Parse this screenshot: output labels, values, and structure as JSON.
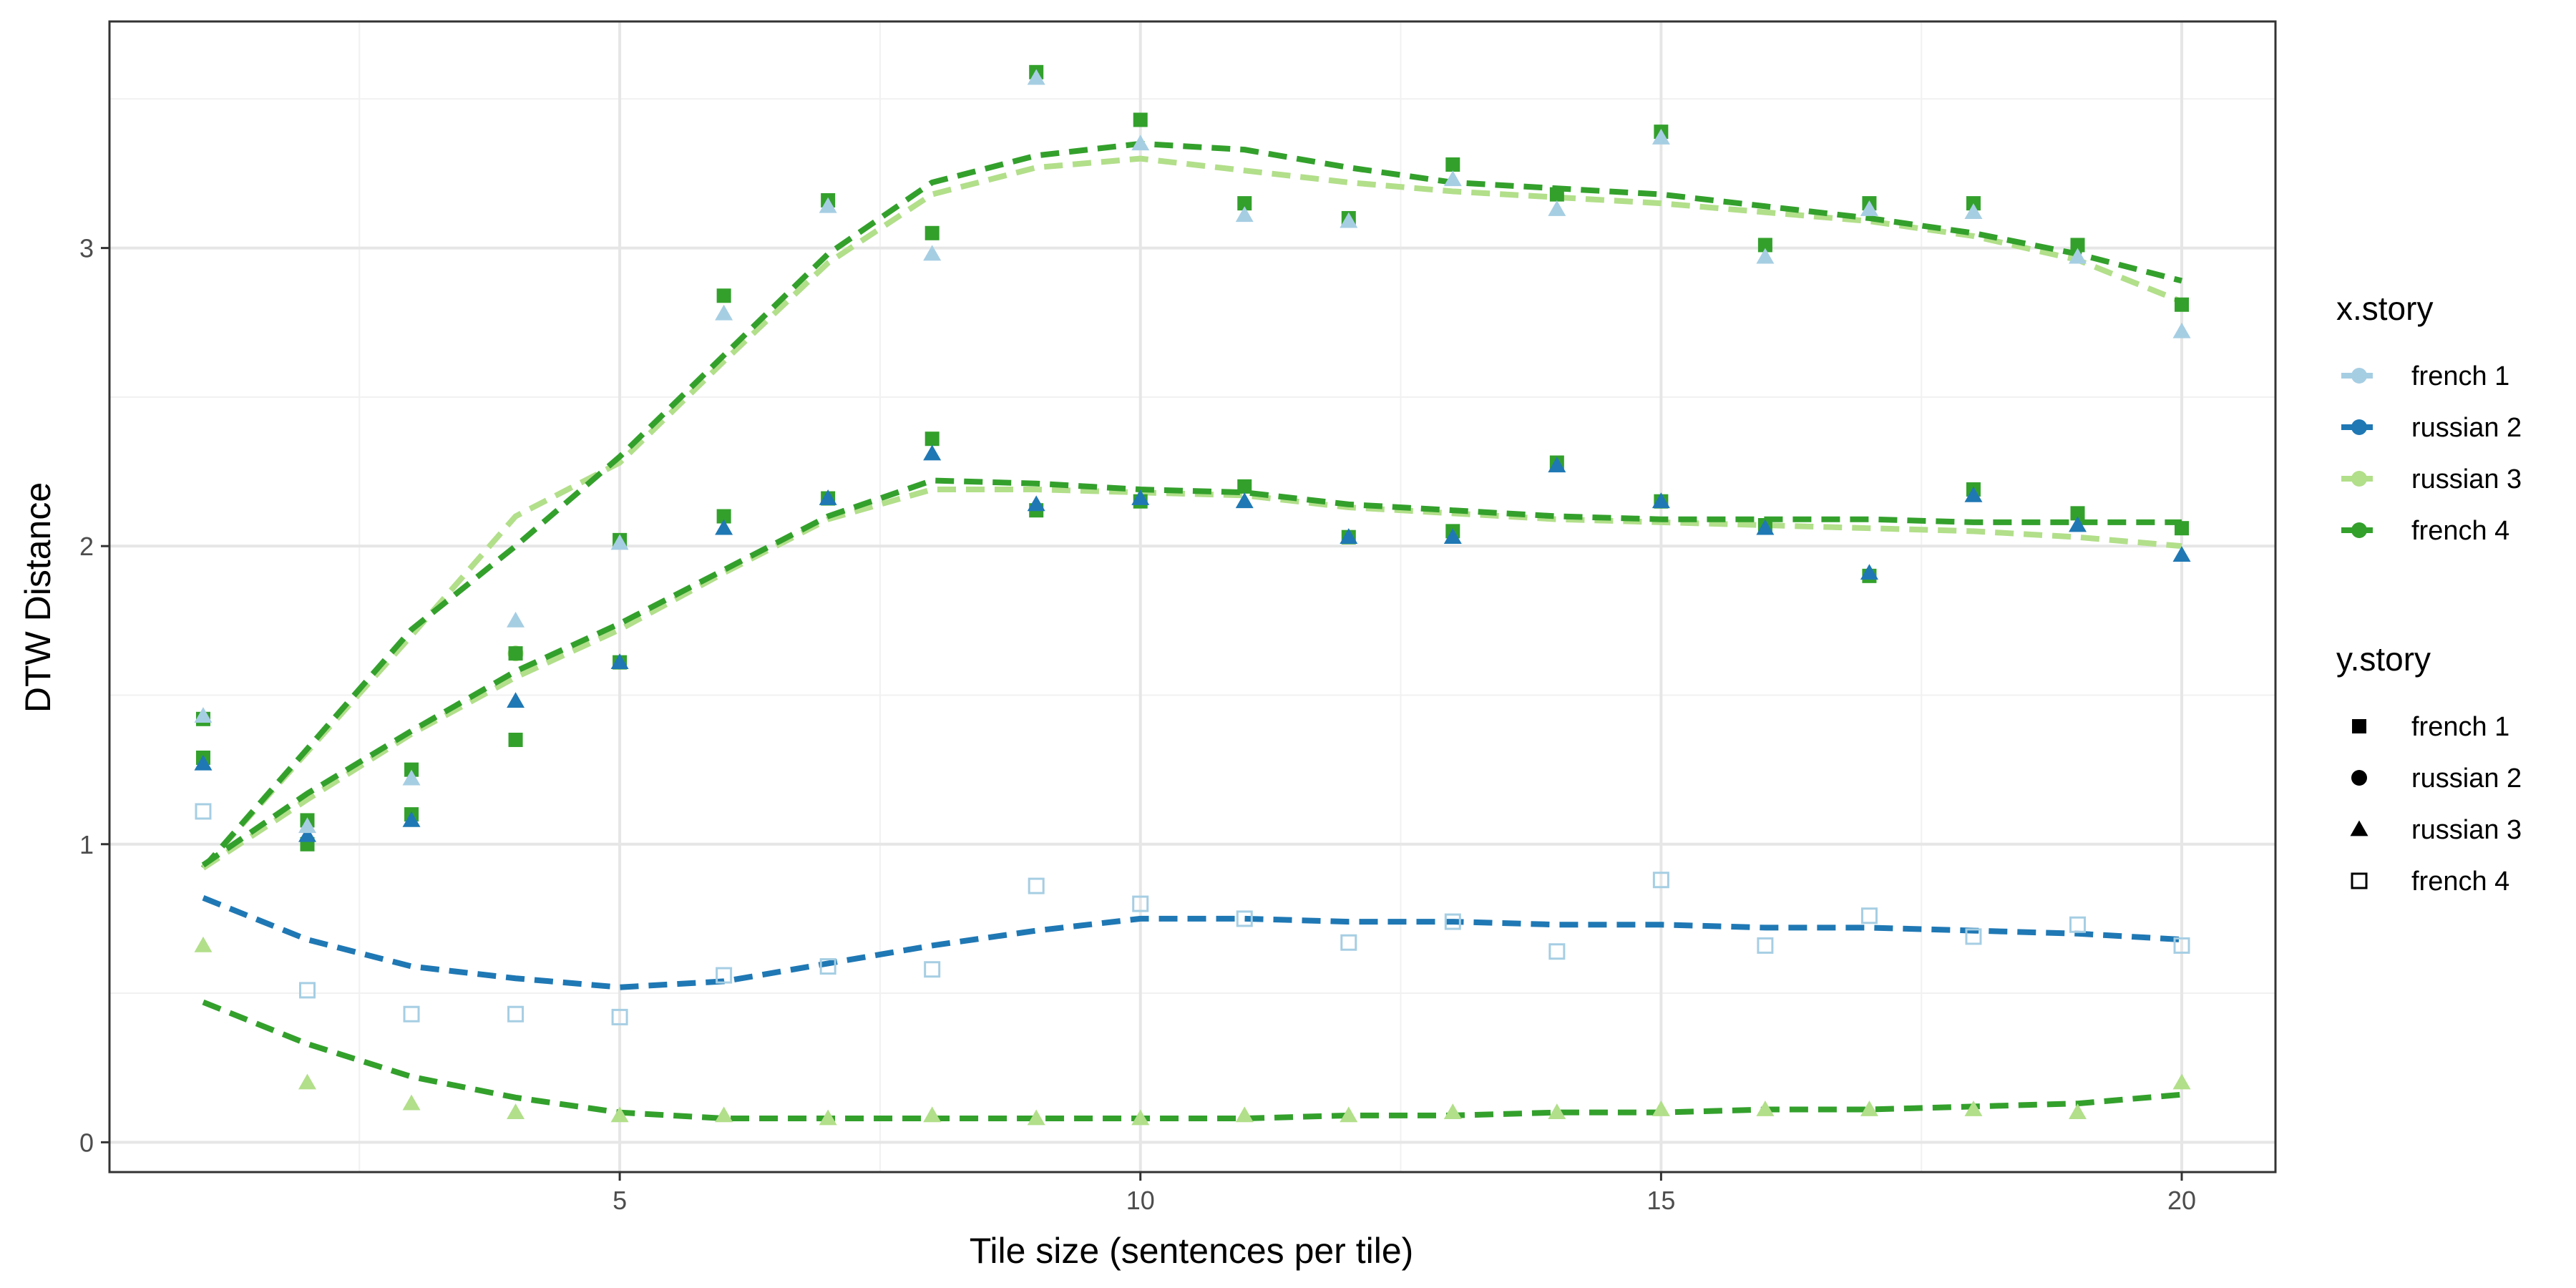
{
  "chart_data": {
    "type": "scatter",
    "xlabel": "Tile size (sentences per tile)",
    "ylabel": "DTW Distance",
    "xlim": [
      0.1,
      20.9
    ],
    "ylim": [
      -0.1,
      3.76
    ],
    "x_ticks": [
      5,
      10,
      15,
      20
    ],
    "y_ticks": [
      0,
      1,
      2,
      3
    ],
    "grid": true,
    "legend_placement": "right",
    "x_story_legend": {
      "title": "x.story",
      "entries": [
        {
          "label": "french 1",
          "color": "#a6cee3"
        },
        {
          "label": "russian 2",
          "color": "#1f78b4"
        },
        {
          "label": "russian 3",
          "color": "#b2df8a"
        },
        {
          "label": "french 4",
          "color": "#33a02c"
        }
      ]
    },
    "y_story_legend": {
      "title": "y.story",
      "entries": [
        {
          "label": "french 1",
          "shape": "square"
        },
        {
          "label": "russian 2",
          "shape": "circle"
        },
        {
          "label": "russian 3",
          "shape": "triangle"
        },
        {
          "label": "french 4",
          "shape": "open-square"
        }
      ]
    },
    "points": [
      {
        "x_story": "french 4",
        "y_story": "french 1",
        "x": [
          1,
          2,
          3,
          4,
          5,
          6,
          7,
          8,
          9,
          10,
          11,
          12,
          13,
          14,
          15,
          16,
          17,
          18,
          19,
          20
        ],
        "y": [
          1.29,
          1.0,
          1.1,
          1.35,
          1.61,
          2.1,
          2.16,
          2.36,
          2.12,
          2.15,
          2.2,
          2.03,
          2.05,
          2.28,
          2.15,
          2.07,
          1.9,
          2.19,
          2.11,
          2.06
        ]
      },
      {
        "x_story": "russian 2",
        "y_story": "russian 3",
        "x": [
          1,
          2,
          3,
          4,
          5,
          6,
          7,
          8,
          9,
          10,
          11,
          12,
          13,
          14,
          15,
          16,
          17,
          18,
          19,
          20
        ],
        "y": [
          1.27,
          1.03,
          1.08,
          1.48,
          1.61,
          2.06,
          2.16,
          2.31,
          2.14,
          2.16,
          2.15,
          2.03,
          2.03,
          2.27,
          2.15,
          2.06,
          1.91,
          2.17,
          2.07,
          1.97
        ]
      },
      {
        "x_story": "russian 3",
        "y_story": "russian 2",
        "x": [
          4
        ],
        "y": [
          1.64
        ]
      },
      {
        "x_story": "french 4",
        "y_story": "french 1",
        "x": [
          1,
          2,
          3,
          4,
          5,
          6,
          7,
          8,
          9,
          10,
          11,
          12,
          13,
          14,
          15,
          16,
          17,
          18,
          19,
          20
        ],
        "y": [
          1.42,
          1.08,
          1.25,
          1.64,
          2.02,
          2.84,
          3.16,
          3.05,
          3.59,
          3.43,
          3.15,
          3.1,
          3.28,
          3.18,
          3.39,
          3.01,
          3.15,
          3.15,
          3.01,
          2.81
        ]
      },
      {
        "x_story": "french 1",
        "y_story": "russian 3",
        "x": [
          1,
          2,
          3,
          4,
          5,
          6,
          7,
          8,
          9,
          10,
          11,
          12,
          13,
          14,
          15,
          16,
          17,
          18,
          19,
          20
        ],
        "y": [
          1.43,
          1.06,
          1.22,
          1.75,
          2.01,
          2.78,
          3.14,
          2.98,
          3.57,
          3.35,
          3.11,
          3.09,
          3.23,
          3.13,
          3.37,
          2.97,
          3.13,
          3.12,
          2.97,
          2.72
        ]
      },
      {
        "x_story": "french 1",
        "y_story": "french 4",
        "x": [
          1,
          2,
          3,
          4,
          5,
          6,
          7,
          8,
          9,
          10,
          11,
          12,
          13,
          14,
          15,
          16,
          17,
          18,
          19,
          20
        ],
        "y": [
          1.11,
          0.51,
          0.43,
          0.43,
          0.42,
          0.56,
          0.59,
          0.58,
          0.86,
          0.8,
          0.75,
          0.67,
          0.74,
          0.64,
          0.88,
          0.66,
          0.76,
          0.69,
          0.73,
          0.66
        ]
      },
      {
        "x_story": "russian 3",
        "y_story": "russian 3",
        "x": [
          1,
          2,
          3,
          4,
          5,
          6,
          7,
          8,
          9,
          10,
          11,
          12,
          13,
          14,
          15,
          16,
          17,
          18,
          19,
          20
        ],
        "y": [
          0.66,
          0.2,
          0.13,
          0.1,
          0.09,
          0.09,
          0.08,
          0.09,
          0.08,
          0.08,
          0.09,
          0.09,
          0.1,
          0.1,
          0.11,
          0.11,
          0.11,
          0.11,
          0.1,
          0.2
        ]
      }
    ],
    "trend_lines": [
      {
        "x_story": "russian 3",
        "x": [
          1,
          2,
          3,
          4,
          5,
          6,
          7,
          8,
          9,
          10,
          11,
          12,
          13,
          14,
          15,
          16,
          17,
          18,
          19,
          20
        ],
        "y": [
          0.92,
          1.31,
          1.7,
          2.1,
          2.28,
          2.62,
          2.95,
          3.18,
          3.27,
          3.3,
          3.26,
          3.22,
          3.19,
          3.17,
          3.15,
          3.12,
          3.09,
          3.04,
          2.96,
          2.82
        ]
      },
      {
        "x_story": "french 4",
        "x": [
          1,
          2,
          3,
          4,
          5,
          6,
          7,
          8,
          9,
          10,
          11,
          12,
          13,
          14,
          15,
          16,
          17,
          18,
          19,
          20
        ],
        "y": [
          0.92,
          1.32,
          1.72,
          2.0,
          2.3,
          2.64,
          2.98,
          3.22,
          3.31,
          3.35,
          3.33,
          3.27,
          3.22,
          3.2,
          3.18,
          3.14,
          3.1,
          3.05,
          2.98,
          2.89
        ]
      },
      {
        "x_story": "russian 3",
        "x": [
          1,
          2,
          3,
          4,
          5,
          6,
          7,
          8,
          9,
          10,
          11,
          12,
          13,
          14,
          15,
          16,
          17,
          18,
          19,
          20
        ],
        "y": [
          0.92,
          1.15,
          1.37,
          1.56,
          1.72,
          1.91,
          2.09,
          2.19,
          2.19,
          2.18,
          2.17,
          2.13,
          2.11,
          2.09,
          2.08,
          2.07,
          2.06,
          2.05,
          2.03,
          2.0
        ]
      },
      {
        "x_story": "french 4",
        "x": [
          1,
          2,
          3,
          4,
          5,
          6,
          7,
          8,
          9,
          10,
          11,
          12,
          13,
          14,
          15,
          16,
          17,
          18,
          19,
          20
        ],
        "y": [
          0.93,
          1.17,
          1.38,
          1.58,
          1.74,
          1.92,
          2.1,
          2.22,
          2.21,
          2.19,
          2.18,
          2.14,
          2.12,
          2.1,
          2.09,
          2.09,
          2.09,
          2.08,
          2.08,
          2.08
        ]
      },
      {
        "x_story": "russian 2",
        "x": [
          1,
          2,
          3,
          4,
          5,
          6,
          7,
          8,
          9,
          10,
          11,
          12,
          13,
          14,
          15,
          16,
          17,
          18,
          19,
          20
        ],
        "y": [
          0.82,
          0.68,
          0.59,
          0.55,
          0.52,
          0.54,
          0.6,
          0.66,
          0.71,
          0.75,
          0.75,
          0.74,
          0.74,
          0.73,
          0.73,
          0.72,
          0.72,
          0.71,
          0.7,
          0.68
        ]
      },
      {
        "x_story": "french 4",
        "x": [
          1,
          2,
          3,
          4,
          5,
          6,
          7,
          8,
          9,
          10,
          11,
          12,
          13,
          14,
          15,
          16,
          17,
          18,
          19,
          20
        ],
        "y": [
          0.47,
          0.33,
          0.22,
          0.15,
          0.1,
          0.08,
          0.08,
          0.08,
          0.08,
          0.08,
          0.08,
          0.09,
          0.09,
          0.1,
          0.1,
          0.11,
          0.11,
          0.12,
          0.13,
          0.16
        ]
      }
    ]
  }
}
